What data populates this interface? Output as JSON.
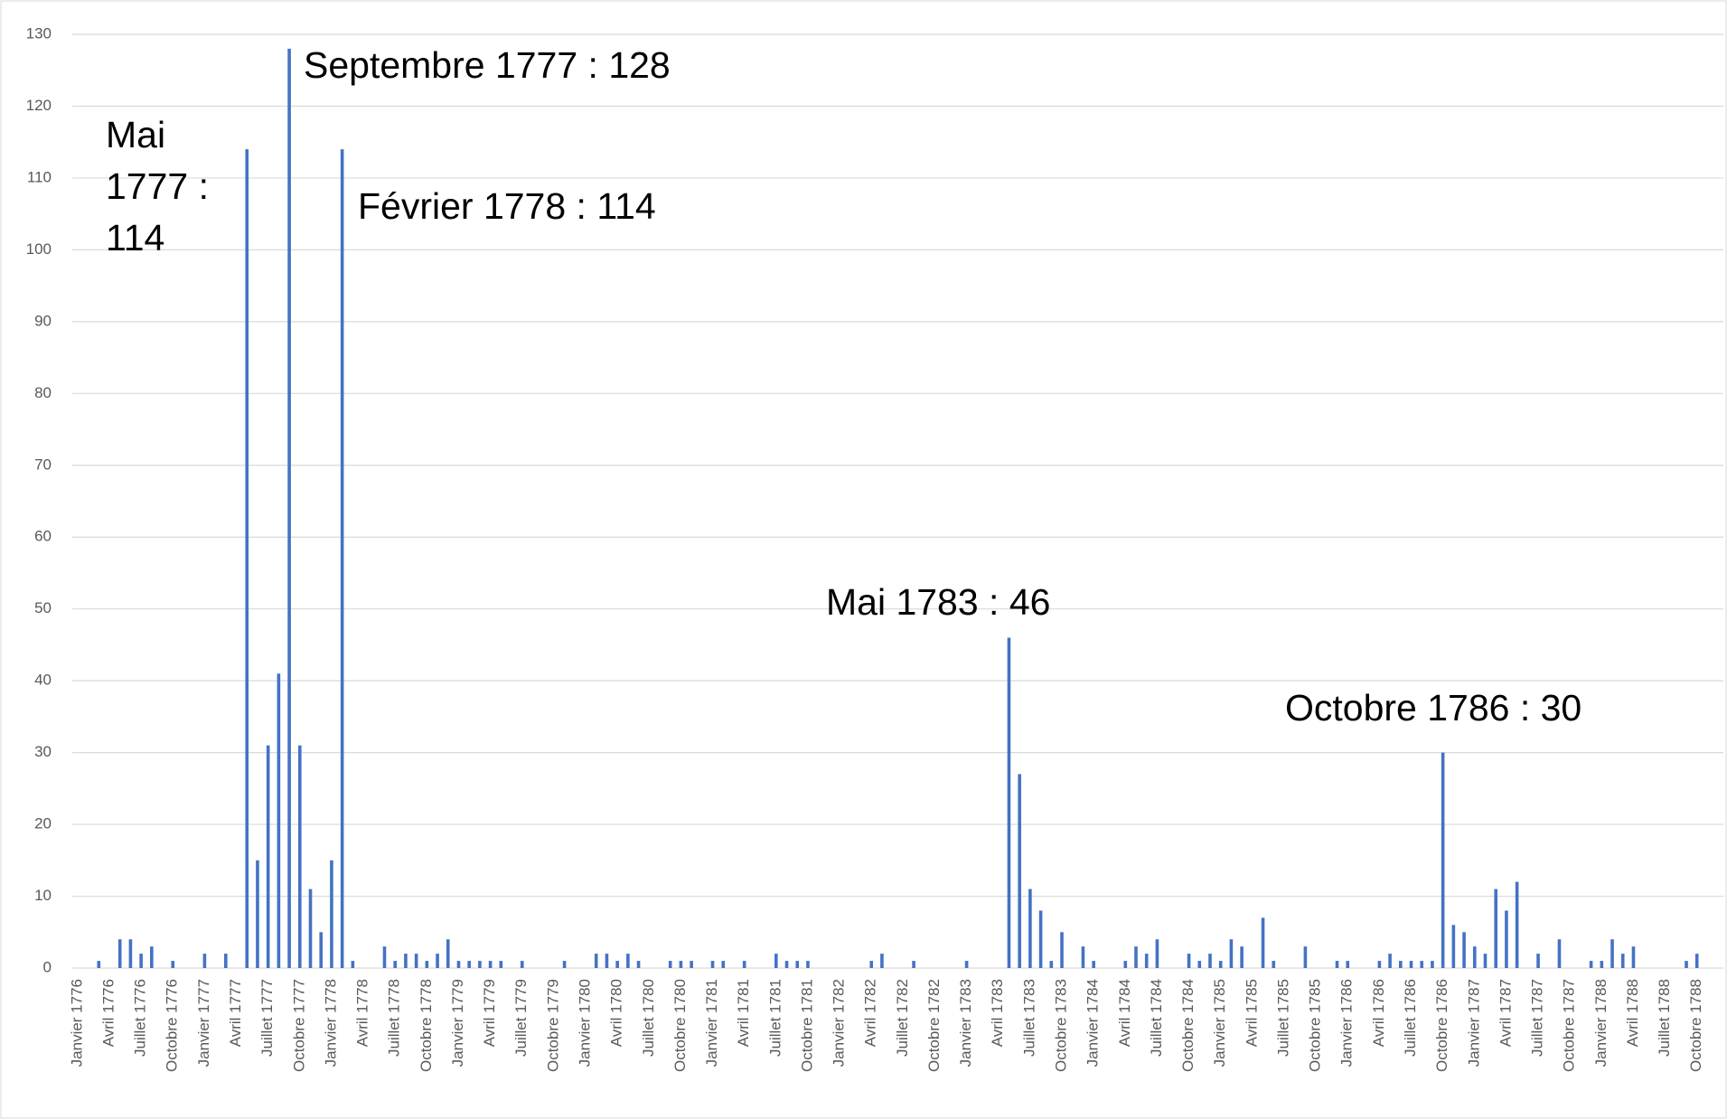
{
  "chart_data": {
    "type": "bar",
    "color": "#4472c4",
    "grid": true,
    "categories": [
      "Janvier 1776",
      null,
      null,
      "Avril 1776",
      null,
      null,
      "Juillet 1776",
      null,
      null,
      "Octobre 1776",
      null,
      null,
      "Janvier 1777",
      null,
      null,
      "Avril 1777",
      null,
      null,
      "Juillet 1777",
      null,
      null,
      "Octobre 1777",
      null,
      null,
      "Janvier 1778",
      null,
      null,
      "Avril 1778",
      null,
      null,
      "Juillet 1778",
      null,
      null,
      "Octobre 1778",
      null,
      null,
      "Janvier 1779",
      null,
      null,
      "Avril 1779",
      null,
      null,
      "Juillet 1779",
      null,
      null,
      "Octobre 1779",
      null,
      null,
      "Janvier 1780",
      null,
      null,
      "Avril 1780",
      null,
      null,
      "Juillet 1780",
      null,
      null,
      "Octobre 1780",
      null,
      null,
      "Janvier 1781",
      null,
      null,
      "Avril 1781",
      null,
      null,
      "Juillet 1781",
      null,
      null,
      "Octobre 1781",
      null,
      null,
      "Janvier 1782",
      null,
      null,
      "Avril 1782",
      null,
      null,
      "Juillet 1782",
      null,
      null,
      "Octobre 1782",
      null,
      null,
      "Janvier 1783",
      null,
      null,
      "Avril 1783",
      null,
      null,
      "Juillet 1783",
      null,
      null,
      "Octobre 1783",
      null,
      null,
      "Janvier 1784",
      null,
      null,
      "Avril 1784",
      null,
      null,
      "Juillet 1784",
      null,
      null,
      "Octobre 1784",
      null,
      null,
      "Janvier 1785",
      null,
      null,
      "Avril 1785",
      null,
      null,
      "Juillet 1785",
      null,
      null,
      "Octobre 1785",
      null,
      null,
      "Janvier 1786",
      null,
      null,
      "Avril 1786",
      null,
      null,
      "Juillet 1786",
      null,
      null,
      "Octobre 1786",
      null,
      null,
      "Janvier 1787",
      null,
      null,
      "Avril 1787",
      null,
      null,
      "Juillet 1787",
      null,
      null,
      "Octobre 1787",
      null,
      null,
      "Janvier 1788",
      null,
      null,
      "Avril 1788",
      null,
      null,
      "Juillet 1788",
      null,
      null,
      "Octobre 1788",
      null,
      null
    ],
    "values": [
      0,
      0,
      1,
      0,
      4,
      4,
      2,
      3,
      0,
      1,
      0,
      0,
      2,
      0,
      2,
      0,
      114,
      15,
      31,
      41,
      128,
      31,
      11,
      5,
      15,
      114,
      1,
      0,
      0,
      3,
      1,
      2,
      2,
      1,
      2,
      4,
      1,
      1,
      1,
      1,
      1,
      0,
      1,
      0,
      0,
      0,
      1,
      0,
      0,
      2,
      2,
      1,
      2,
      1,
      0,
      0,
      1,
      1,
      1,
      0,
      1,
      1,
      0,
      1,
      0,
      0,
      2,
      1,
      1,
      1,
      0,
      0,
      0,
      0,
      0,
      1,
      2,
      0,
      0,
      1,
      0,
      0,
      0,
      0,
      1,
      0,
      0,
      0,
      46,
      27,
      11,
      8,
      1,
      5,
      0,
      3,
      1,
      0,
      0,
      1,
      3,
      2,
      4,
      0,
      0,
      2,
      1,
      2,
      1,
      4,
      3,
      0,
      7,
      1,
      0,
      0,
      3,
      0,
      0,
      1,
      1,
      0,
      0,
      1,
      2,
      1,
      1,
      1,
      1,
      30,
      6,
      5,
      3,
      2,
      11,
      8,
      12,
      0,
      2,
      0,
      4,
      0,
      0,
      1,
      1,
      4,
      2,
      3,
      0,
      0,
      0,
      0,
      1,
      2,
      0,
      0
    ],
    "ylim": [
      0,
      130
    ],
    "yticks": [
      0,
      10,
      20,
      30,
      40,
      50,
      60,
      70,
      80,
      90,
      100,
      110,
      120,
      130
    ],
    "annotations": [
      "Mai 1777 : 114",
      "Septembre 1777 : 128",
      "Février 1778 : 114",
      "Mai 1783 : 46",
      "Octobre 1786 : 30"
    ]
  }
}
